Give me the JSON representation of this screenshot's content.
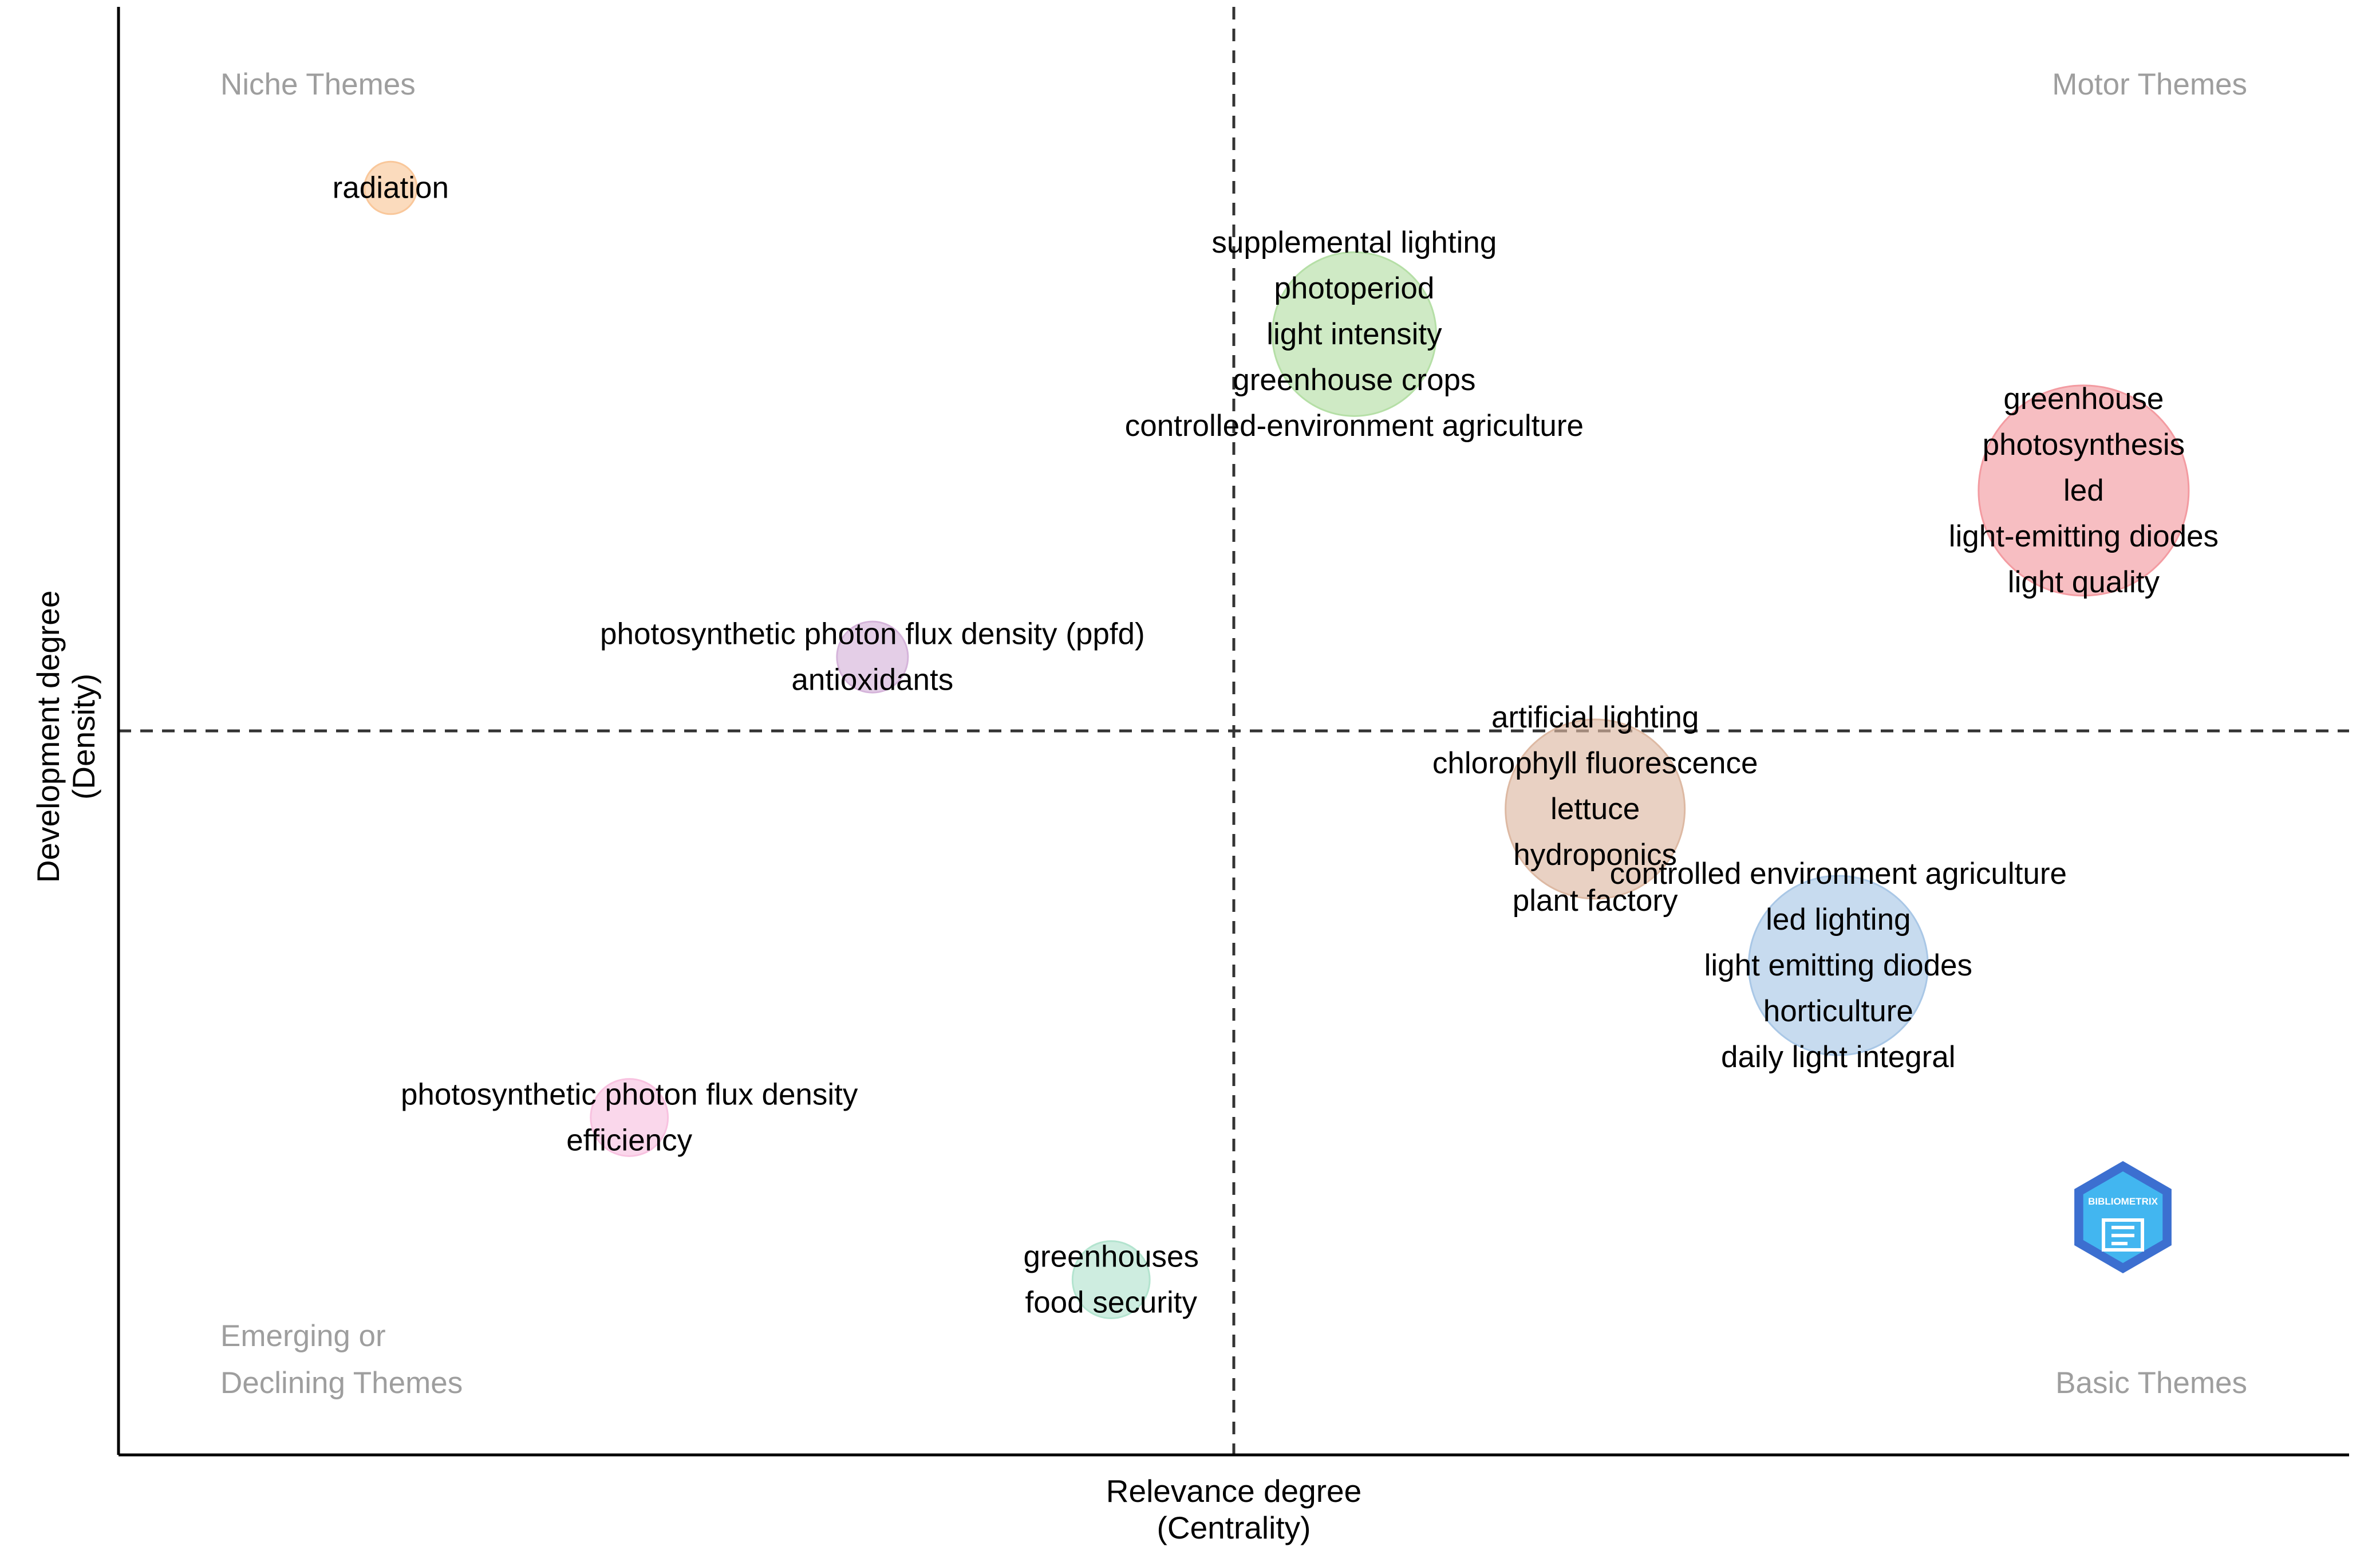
{
  "chart_data": {
    "type": "scatter",
    "title": "",
    "xlabel": "Relevance degree",
    "xlabel_sub": "(Centrality)",
    "ylabel": "Development degree",
    "ylabel_sub": "(Density)",
    "xlim": [
      0,
      100
    ],
    "ylim": [
      0,
      100
    ],
    "median_x": 50,
    "median_y": 50,
    "quadrants": {
      "top_left": [
        "Niche Themes"
      ],
      "top_right": [
        "Motor Themes"
      ],
      "bottom_left": [
        "Emerging or",
        "Declining Themes"
      ],
      "bottom_right": [
        "Basic Themes"
      ]
    },
    "clusters": [
      {
        "name": "radiation",
        "x": 12.2,
        "y": 87.5,
        "size": 4,
        "color": "#f9c79a",
        "labels": [
          "radiation"
        ]
      },
      {
        "name": "supplemental lighting",
        "x": 55.4,
        "y": 77.4,
        "size": 40,
        "color": "#b5dfa6",
        "labels": [
          "supplemental lighting",
          "photoperiod",
          "light intensity",
          "greenhouse crops",
          "controlled-environment agriculture"
        ]
      },
      {
        "name": "greenhouse",
        "x": 88.1,
        "y": 66.6,
        "size": 55,
        "color": "#f39ba1",
        "labels": [
          "greenhouse",
          "photosynthesis",
          "led",
          "light-emitting diodes",
          "light quality"
        ]
      },
      {
        "name": "photosynthetic photon flux density (ppfd)",
        "x": 33.8,
        "y": 55.1,
        "size": 10,
        "color": "#d5b4da",
        "labels": [
          "photosynthetic photon flux density (ppfd)",
          "antioxidants"
        ]
      },
      {
        "name": "artificial lighting",
        "x": 66.2,
        "y": 44.6,
        "size": 45,
        "color": "#ddb9a3",
        "labels": [
          "artificial lighting",
          "chlorophyll fluorescence",
          "lettuce",
          "hydroponics",
          "plant factory"
        ]
      },
      {
        "name": "controlled environment agriculture",
        "x": 77.1,
        "y": 33.8,
        "size": 45,
        "color": "#a9c7e6",
        "labels": [
          "controlled environment agriculture",
          "led lighting",
          "light emitting diodes",
          "horticulture",
          "daily light integral"
        ]
      },
      {
        "name": "photosynthetic photon flux density",
        "x": 22.9,
        "y": 23.3,
        "size": 12,
        "color": "#f8c2e0",
        "labels": [
          "photosynthetic photon flux density",
          "efficiency"
        ]
      },
      {
        "name": "greenhouses",
        "x": 44.5,
        "y": 12.1,
        "size": 12,
        "color": "#b3e4cf",
        "labels": [
          "greenhouses",
          "food security"
        ]
      }
    ]
  },
  "logo": {
    "text": "BIBLIOMETRIX",
    "color_dark": "#3c6fd0",
    "color_light": "#42b6f0"
  },
  "colors": {
    "axis": "#000000",
    "guide": "#333333",
    "quadrant_text": "#9e9e9e"
  }
}
